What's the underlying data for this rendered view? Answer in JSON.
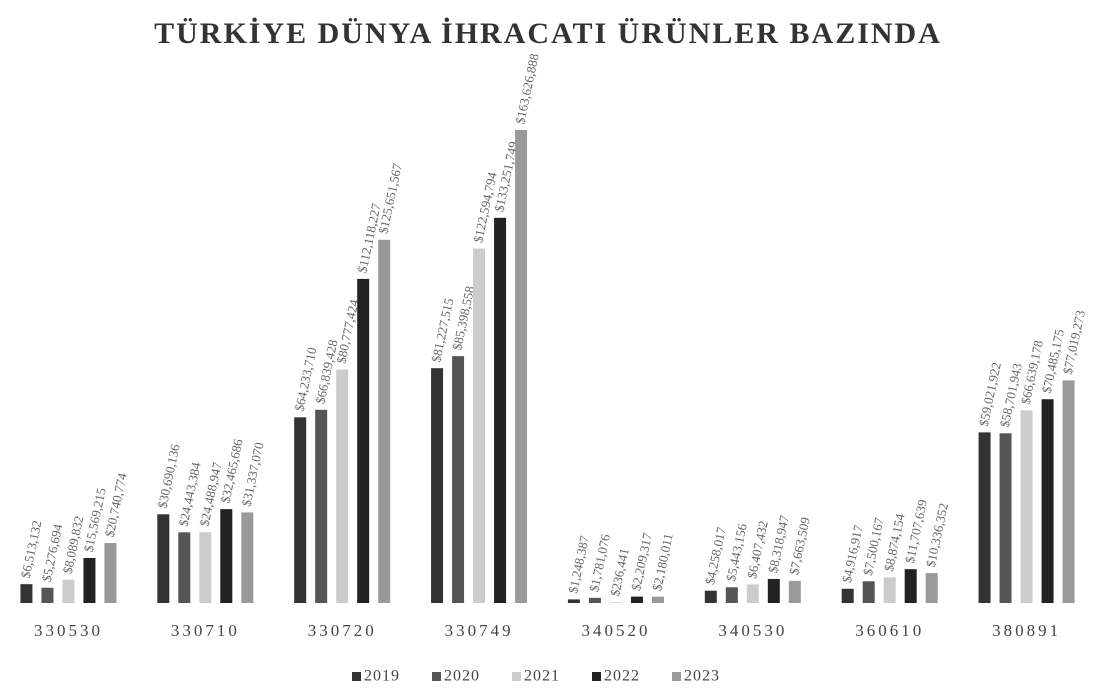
{
  "chart_data": {
    "type": "bar",
    "title": "TÜRKİYE DÜNYA İHRACATI  ÜRÜNLER BAZINDA",
    "categories": [
      "330530",
      "330710",
      "330720",
      "330749",
      "340520",
      "340530",
      "360610",
      "380891"
    ],
    "series": [
      {
        "name": "2019",
        "color": "#333333",
        "values": [
          6513132,
          30690136,
          64233710,
          81227515,
          1248387,
          4258017,
          4916917,
          59021922
        ],
        "value_labels": [
          "$6,513,132",
          "$30,690,136",
          "$64,233,710",
          "$81,227,515",
          "$1,248,387",
          "$4,258,017",
          "$4,916,917",
          "$59,021,922"
        ]
      },
      {
        "name": "2020",
        "color": "#555555",
        "values": [
          5276694,
          24443384,
          66839428,
          85398558,
          1781076,
          5443156,
          7500167,
          58701943
        ],
        "value_labels": [
          "$5,276,694",
          "$24,443,384",
          "$66,839,428",
          "$85,398,558",
          "$1,781,076",
          "$5,443,156",
          "$7,500,167",
          "$58,701,943"
        ]
      },
      {
        "name": "2021",
        "color": "#cccccc",
        "values": [
          8089832,
          24488947,
          80777424,
          122594794,
          236441,
          6407432,
          8874154,
          66639178
        ],
        "value_labels": [
          "$8,089,832",
          "$24,488,947",
          "$80,777,424",
          "$122,594,794",
          "$236,441",
          "$6,407,432",
          "$8,874,154",
          "$66,639,178"
        ]
      },
      {
        "name": "2022",
        "color": "#222222",
        "values": [
          15569215,
          32465686,
          112118227,
          133251749,
          2209317,
          8318947,
          11707639,
          70485175
        ],
        "value_labels": [
          "$15,569,215",
          "$32,465,686",
          "$112,118,227",
          "$133,251,749",
          "$2,209,317",
          "$8,318,947",
          "$11,707,639",
          "$70,485,175"
        ]
      },
      {
        "name": "2023",
        "color": "#999999",
        "values": [
          20740774,
          31337070,
          125651567,
          163626888,
          2180011,
          7663509,
          10336352,
          77019273
        ],
        "value_labels": [
          "$20,740,774",
          "$31,337,070",
          "$125,651,567",
          "$163,626,888",
          "$2,180,011",
          "$7,663,509",
          "$10,336,352",
          "$77,019,273"
        ]
      }
    ],
    "legend": "bottom"
  }
}
